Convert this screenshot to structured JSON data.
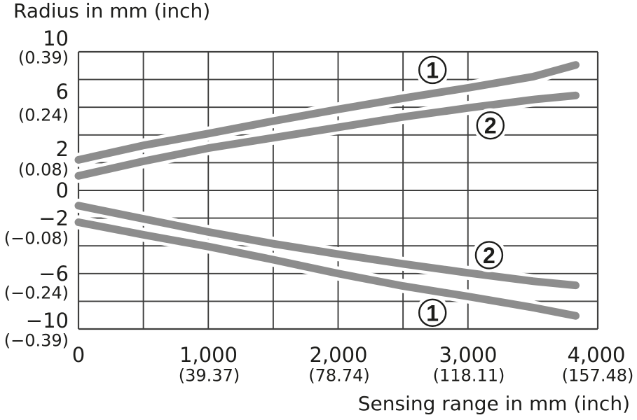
{
  "title": "Radius in mm (inch)",
  "x_axis": {
    "title": "Sensing range in mm (inch)",
    "ticks": [
      {
        "mm": "0",
        "inch": ""
      },
      {
        "mm": "1,000",
        "inch": "(39.37)"
      },
      {
        "mm": "2,000",
        "inch": "(78.74)"
      },
      {
        "mm": "3,000",
        "inch": "(118.11)"
      },
      {
        "mm": "4,000",
        "inch": "(157.48)"
      }
    ]
  },
  "y_axis": {
    "ticks": [
      {
        "mm": "10",
        "inch": "(0.39)"
      },
      {
        "mm": "6",
        "inch": "(0.24)"
      },
      {
        "mm": "2",
        "inch": "(0.08)"
      },
      {
        "mm": "0",
        "inch": ""
      },
      {
        "mm": "−2",
        "inch": "(−0.08)"
      },
      {
        "mm": "−6",
        "inch": "(−0.24)"
      },
      {
        "mm": "−10",
        "inch": "(−0.39)"
      }
    ]
  },
  "chart_data": {
    "type": "line",
    "title": "Radius in mm (inch)",
    "xlabel": "Sensing range in mm (inch)",
    "ylabel": "Radius in mm (inch)",
    "xlim": [
      0,
      4000
    ],
    "ylim": [
      -10,
      10
    ],
    "grid": true,
    "x_gridlines_mm": [
      0,
      500,
      1000,
      1500,
      2000,
      2500,
      3000,
      4000
    ],
    "y_gridline_step_mm": 2,
    "x_mm": [
      0,
      500,
      1000,
      1500,
      2000,
      2500,
      3000,
      3500,
      3830
    ],
    "series": [
      {
        "name": "1 upper",
        "curve": "1",
        "values_mm": [
          2.2,
          3.25,
          4.1,
          5.0,
          5.85,
          6.65,
          7.4,
          8.2,
          9.05
        ]
      },
      {
        "name": "2 upper",
        "curve": "2",
        "values_mm": [
          1.05,
          2.1,
          3.05,
          3.8,
          4.55,
          5.3,
          5.95,
          6.55,
          6.85
        ]
      },
      {
        "name": "2 lower",
        "curve": "2",
        "values_mm": [
          -1.1,
          -2.05,
          -3.0,
          -3.85,
          -4.6,
          -5.3,
          -5.95,
          -6.55,
          -6.85
        ]
      },
      {
        "name": "1 lower",
        "curve": "1",
        "values_mm": [
          -2.3,
          -3.2,
          -4.05,
          -5.0,
          -6.0,
          -6.9,
          -7.65,
          -8.45,
          -9.05
        ]
      }
    ],
    "markers": [
      {
        "label": "1",
        "x_mm": 2727,
        "y_mm": 8.69
      },
      {
        "label": "2",
        "x_mm": 3173,
        "y_mm": 4.69
      },
      {
        "label": "2",
        "x_mm": 3163,
        "y_mm": -4.67
      },
      {
        "label": "1",
        "x_mm": 2727,
        "y_mm": -8.83
      }
    ],
    "x_tick_labels": [
      "0",
      "1,000 (39.37)",
      "2,000 (78.74)",
      "3,000 (118.11)",
      "4,000 (157.48)"
    ],
    "y_tick_labels": [
      "10 (0.39)",
      "6 (0.24)",
      "2 (0.08)",
      "0",
      "−2 (−0.08)",
      "−6 (−0.24)",
      "−10 (−0.39)"
    ],
    "legend": false
  },
  "style": {
    "curve_color": "#8d8d8d",
    "grid_color": "#3f3f3e",
    "text_color": "#1d1d1b",
    "background": "#ffffff"
  }
}
